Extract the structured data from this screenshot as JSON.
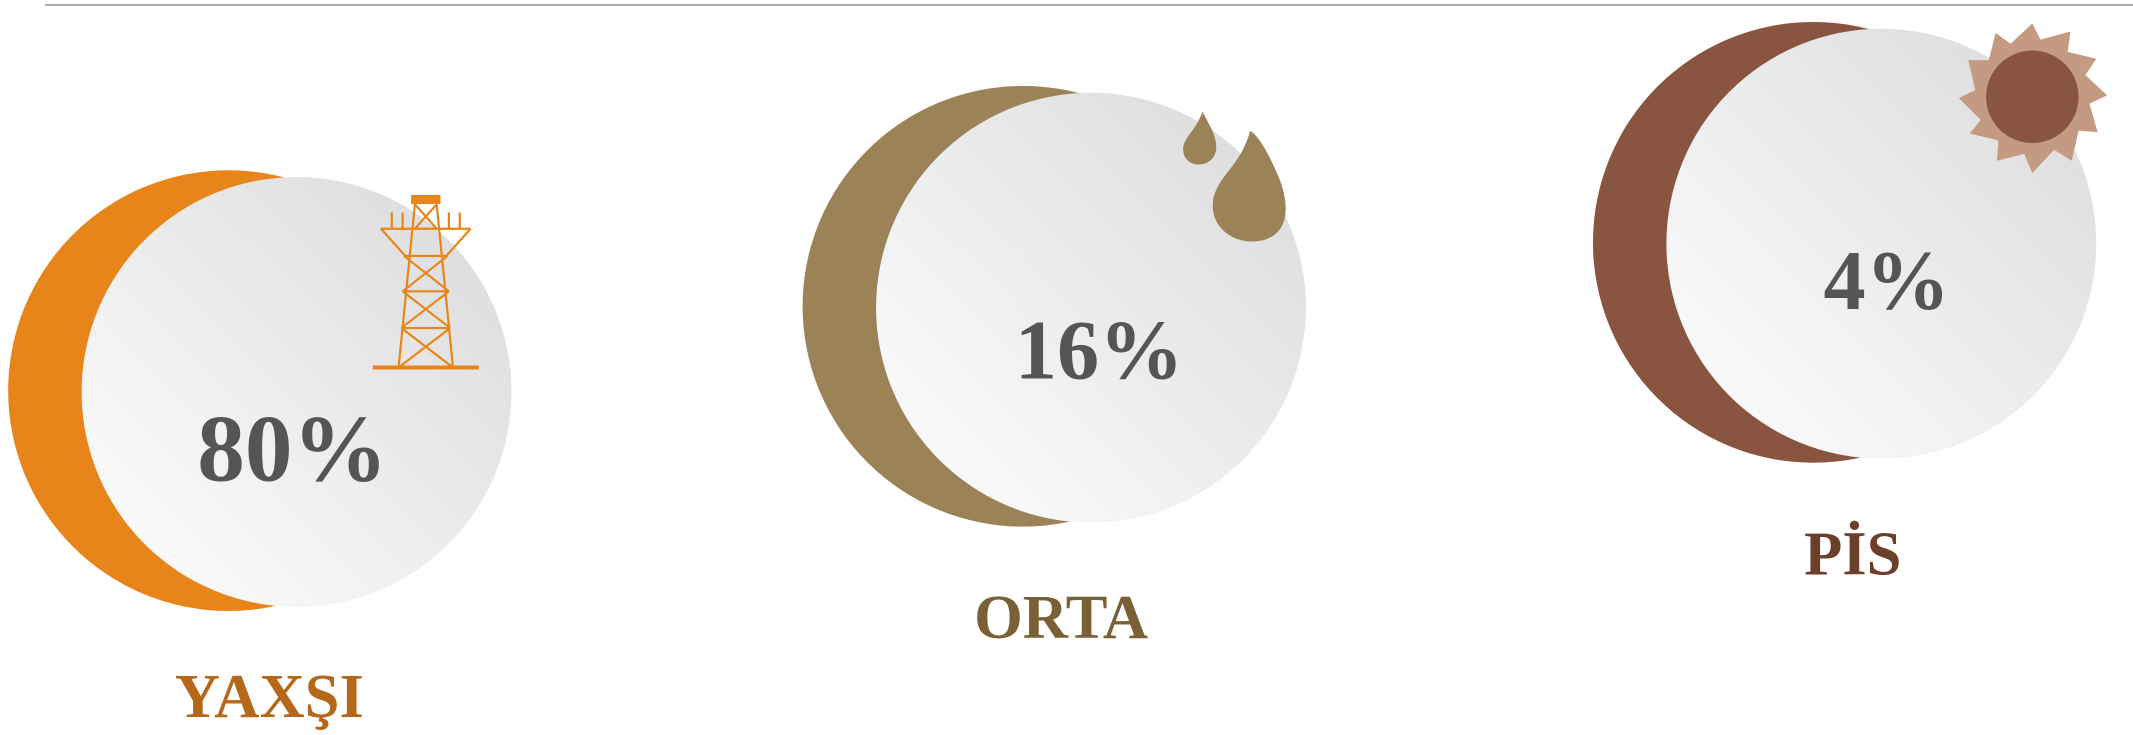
{
  "items": [
    {
      "percent": "80%",
      "label": "YAXŞI"
    },
    {
      "percent": "16%",
      "label": "ORTA"
    },
    {
      "percent": "4%",
      "label": "PİS"
    }
  ]
}
